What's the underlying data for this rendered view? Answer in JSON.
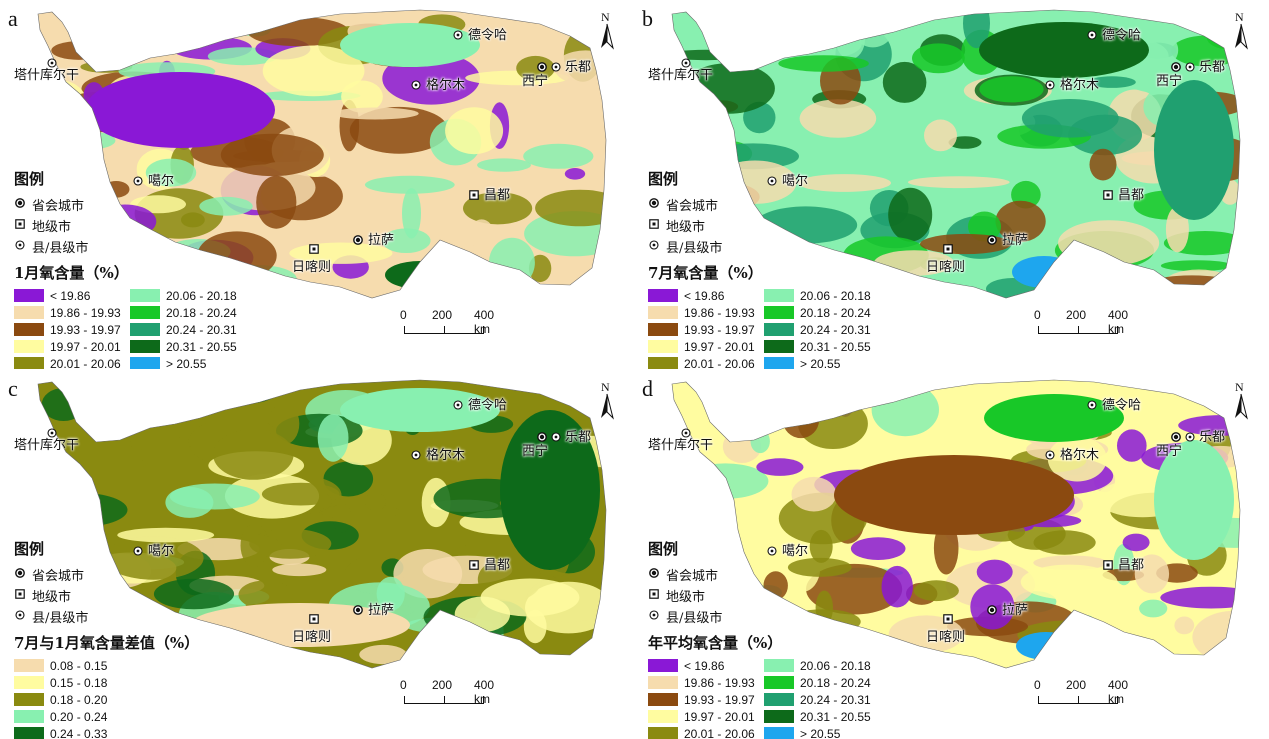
{
  "panels": [
    {
      "label": "a",
      "legend_title": "1月氧含量（%）",
      "bins": [
        "< 19.86",
        "20.06 - 20.18",
        "19.86 - 19.93",
        "20.18 - 20.24",
        "19.93 - 19.97",
        "20.24 - 20.31",
        "19.97 - 20.01",
        "20.31 - 20.55",
        "20.01 - 20.06",
        "> 20.55"
      ],
      "colors": [
        "#8a18d6",
        "#88f0b0",
        "#f6dcae",
        "#18c828",
        "#8b4a10",
        "#20a070",
        "#fffca0",
        "#0d6a1a",
        "#8a8a10",
        "#1ea6ee"
      ]
    },
    {
      "label": "b",
      "legend_title": "7月氧含量（%）",
      "bins": [
        "< 19.86",
        "20.06 - 20.18",
        "19.86 - 19.93",
        "20.18 - 20.24",
        "19.93 - 19.97",
        "20.24 - 20.31",
        "19.97 - 20.01",
        "20.31 - 20.55",
        "20.01 - 20.06",
        "> 20.55"
      ],
      "colors": [
        "#8a18d6",
        "#88f0b0",
        "#f6dcae",
        "#18c828",
        "#8b4a10",
        "#20a070",
        "#fffca0",
        "#0d6a1a",
        "#8a8a10",
        "#1ea6ee"
      ]
    },
    {
      "label": "c",
      "legend_title": "7月与1月氧含量差值（%）",
      "bins": [
        "0.08 - 0.15",
        "0.15 - 0.18",
        "0.18 - 0.20",
        "0.20 - 0.24",
        "0.24 - 0.33"
      ],
      "colors": [
        "#f6dcae",
        "#fffca0",
        "#8a8a10",
        "#88f0b0",
        "#0d6a1a"
      ]
    },
    {
      "label": "d",
      "legend_title": "年平均氧含量（%）",
      "bins": [
        "< 19.86",
        "20.06 - 20.18",
        "19.86 - 19.93",
        "20.18 - 20.24",
        "19.93 - 19.97",
        "20.24 - 20.31",
        "19.97 - 20.01",
        "20.31 - 20.55",
        "20.01 - 20.06",
        "> 20.55"
      ],
      "colors": [
        "#8a18d6",
        "#88f0b0",
        "#f6dcae",
        "#18c828",
        "#8b4a10",
        "#20a070",
        "#fffca0",
        "#0d6a1a",
        "#8a8a10",
        "#1ea6ee"
      ]
    }
  ],
  "legend": {
    "title": "图例",
    "provincial": "省会城市",
    "prefecture": "地级市",
    "county": "县/县级市"
  },
  "north": "N",
  "scale": {
    "l0": "0",
    "l1": "200",
    "l2": "400 km"
  },
  "cities": {
    "tashkurgan": "塔什库尔干",
    "delingha": "德令哈",
    "ledu": "乐都",
    "xining": "西宁",
    "golmud": "格尔木",
    "gar": "噶尔",
    "qamdo": "昌都",
    "lhasa": "拉萨",
    "shigatse": "日喀则"
  }
}
